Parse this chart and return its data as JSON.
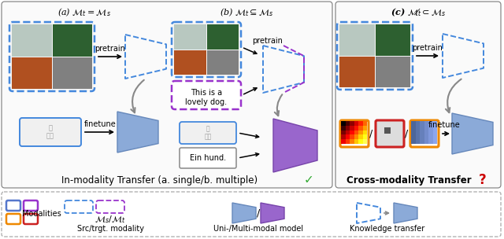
{
  "title_a": "(a) $\\mathcal{M}_t = \\mathcal{M}_s$",
  "title_b": "(b) $\\mathcal{M}_t \\subseteq \\mathcal{M}_s$",
  "title_c": "(c) $\\mathcal{M}_t \\not\\subset \\mathcal{M}_s$",
  "label_in": "In-modality Transfer (a. single/b. multiple)",
  "label_cross": "Cross-modality Transfer",
  "check": "✓",
  "question": "?",
  "legend_modalities": "Modalities",
  "legend_src": "$\\mathcal{M}_s/\\mathcal{M}_t$",
  "legend_src_label": "Src/trgt. modality",
  "legend_model": "Uni-/Multi-modal model",
  "legend_transfer": "Knowledge transfer",
  "pretrain": "pretrain",
  "finetune": "finetune",
  "bg_color": "#FFFFFF",
  "dashed_blue": "#4488DD",
  "dashed_purple": "#9933CC",
  "model_blue_face": "#8BAAD8",
  "model_blue_edge": "#6688BB",
  "model_purple_face": "#9966CC",
  "model_purple_edge": "#7744AA",
  "gray_arrow": "#888888",
  "green_check_color": "#33AA33",
  "red_question_color": "#CC0000",
  "panel_border": "#888888",
  "legend_border": "#AAAAAA"
}
